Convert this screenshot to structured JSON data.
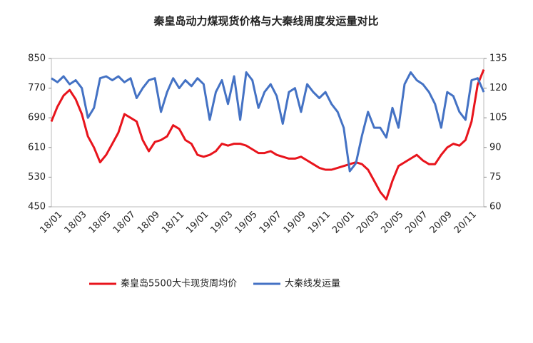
{
  "chart_data": {
    "type": "line",
    "title": "秦皇岛动力煤现货价格与大秦线周度发运量对比",
    "categories": [
      "18/01",
      null,
      null,
      null,
      "18/03",
      null,
      null,
      null,
      "18/05",
      null,
      null,
      null,
      "18/07",
      null,
      null,
      null,
      "18/09",
      null,
      null,
      null,
      "18/11",
      null,
      null,
      null,
      "19/01",
      null,
      null,
      null,
      "19/03",
      null,
      null,
      null,
      "19/05",
      null,
      null,
      null,
      "19/07",
      null,
      null,
      null,
      "19/09",
      null,
      null,
      null,
      "19/11",
      null,
      null,
      null,
      "20/01",
      null,
      null,
      null,
      "20/03",
      null,
      null,
      null,
      "20/05",
      null,
      null,
      null,
      "20/07",
      null,
      null,
      null,
      "20/09",
      null,
      null,
      null,
      "20/11",
      null,
      null,
      null
    ],
    "series": [
      {
        "name": "秦皇岛5500大卡现货周均价",
        "color": "#e8141c",
        "values": [
          680,
          720,
          750,
          765,
          740,
          700,
          640,
          610,
          570,
          590,
          620,
          650,
          700,
          690,
          680,
          630,
          600,
          625,
          630,
          640,
          670,
          660,
          630,
          620,
          590,
          585,
          590,
          600,
          620,
          615,
          620,
          620,
          615,
          605,
          595,
          595,
          600,
          590,
          585,
          580,
          580,
          585,
          575,
          565,
          555,
          550,
          550,
          555,
          560,
          565,
          570,
          565,
          550,
          520,
          490,
          470,
          520,
          560,
          570,
          580,
          590,
          575,
          565,
          565,
          590,
          610,
          620,
          615,
          630,
          680,
          780,
          820
        ]
      },
      {
        "name": "大秦线发运量",
        "color": "#4472c4",
        "axis": "y2",
        "values": [
          125,
          123,
          126,
          122,
          124,
          120,
          105,
          110,
          125,
          126,
          124,
          126,
          123,
          125,
          115,
          120,
          124,
          125,
          108,
          118,
          125,
          120,
          124,
          121,
          125,
          122,
          104,
          118,
          124,
          112,
          126,
          104,
          128,
          124,
          110,
          118,
          122,
          116,
          102,
          118,
          120,
          108,
          122,
          118,
          115,
          118,
          112,
          108,
          100,
          78,
          82,
          96,
          108,
          100,
          100,
          95,
          110,
          100,
          122,
          128,
          124,
          122,
          118,
          112,
          100,
          118,
          116,
          108,
          104,
          124,
          125,
          118
        ]
      }
    ],
    "ylim": [
      450,
      850
    ],
    "yticks": [
      450,
      530,
      610,
      690,
      770,
      850
    ],
    "y2lim": [
      60,
      135
    ],
    "y2ticks": [
      60,
      75,
      90,
      105,
      120,
      135
    ]
  }
}
